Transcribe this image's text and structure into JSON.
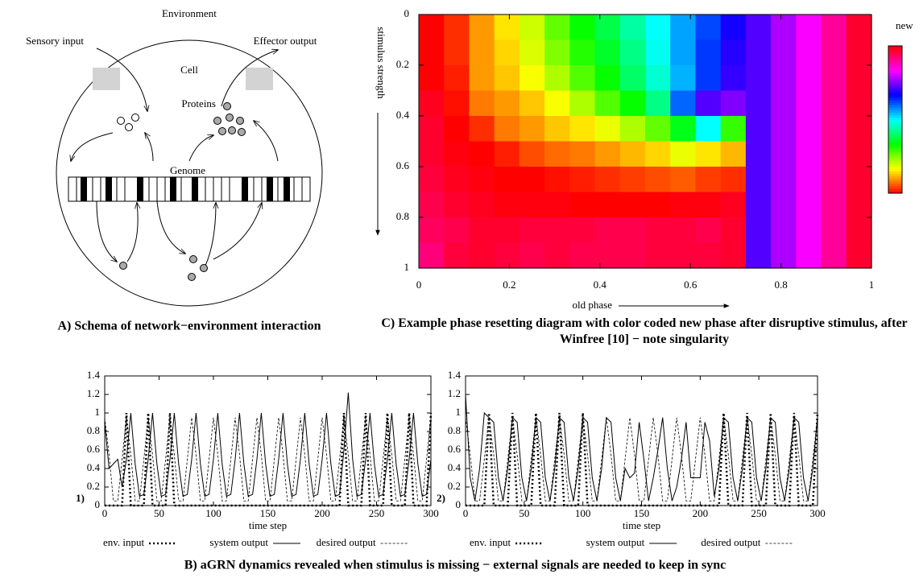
{
  "schema": {
    "environment": "Environment",
    "sensory_input": "Sensory input",
    "effector_output": "Effector output",
    "cell": "Cell",
    "proteins": "Proteins",
    "genome": "Genome"
  },
  "captions": {
    "a": "A) Schema of network−environment interaction",
    "c": "C) Example phase resetting diagram with color coded new phase after disruptive stimulus, after Winfree [10] − note singularity",
    "b": "B) aGRN dynamics revealed when stimulus is missing − external signals are needed to keep in sync"
  },
  "chart_data": [
    {
      "type": "heatmap",
      "xlabel": "old phase",
      "ylabel": "stimulus strength",
      "colorbar_label": "new",
      "xlim": [
        0,
        1
      ],
      "ylim": [
        1,
        0
      ],
      "clim": [
        0,
        1
      ],
      "xticks": [
        0,
        0.2,
        0.4,
        0.6,
        0.8,
        1
      ],
      "yticks": [
        0,
        0.2,
        0.4,
        0.6,
        0.8,
        1
      ],
      "values": [
        [
          0.0,
          0.03,
          0.1,
          0.15,
          0.2,
          0.27,
          0.33,
          0.38,
          0.44,
          0.5,
          0.56,
          0.62,
          0.68,
          0.72,
          0.78,
          0.83,
          0.9,
          0.97
        ],
        [
          0.0,
          0.03,
          0.1,
          0.14,
          0.19,
          0.25,
          0.31,
          0.36,
          0.42,
          0.49,
          0.56,
          0.63,
          0.69,
          0.72,
          0.78,
          0.83,
          0.9,
          0.97
        ],
        [
          0.0,
          0.02,
          0.1,
          0.13,
          0.17,
          0.22,
          0.28,
          0.33,
          0.4,
          0.47,
          0.55,
          0.63,
          0.7,
          0.72,
          0.78,
          0.83,
          0.9,
          0.97
        ],
        [
          0.98,
          0.01,
          0.08,
          0.1,
          0.13,
          0.17,
          0.22,
          0.28,
          0.33,
          0.42,
          0.6,
          0.72,
          0.75,
          0.72,
          0.78,
          0.83,
          0.9,
          0.97
        ],
        [
          0.97,
          0.0,
          0.03,
          0.08,
          0.1,
          0.13,
          0.15,
          0.18,
          0.22,
          0.27,
          0.35,
          0.5,
          0.3,
          0.72,
          0.78,
          0.83,
          0.9,
          0.97
        ],
        [
          0.97,
          0.99,
          0.0,
          0.02,
          0.05,
          0.07,
          0.08,
          0.1,
          0.12,
          0.14,
          0.18,
          0.15,
          0.12,
          0.72,
          0.78,
          0.83,
          0.9,
          0.97
        ],
        [
          0.96,
          0.98,
          0.99,
          0.0,
          0.0,
          0.01,
          0.02,
          0.03,
          0.04,
          0.05,
          0.06,
          0.04,
          0.03,
          0.72,
          0.78,
          0.83,
          0.9,
          0.97
        ],
        [
          0.95,
          0.97,
          0.98,
          0.99,
          0.99,
          0.99,
          0.0,
          0.0,
          0.0,
          0.0,
          0.99,
          0.99,
          0.98,
          0.72,
          0.78,
          0.83,
          0.9,
          0.97
        ],
        [
          0.94,
          0.95,
          0.97,
          0.97,
          0.96,
          0.96,
          0.96,
          0.95,
          0.95,
          0.96,
          0.96,
          0.95,
          0.97,
          0.72,
          0.78,
          0.83,
          0.9,
          0.97
        ],
        [
          0.92,
          0.96,
          0.97,
          0.96,
          0.95,
          0.96,
          0.95,
          0.95,
          0.95,
          0.96,
          0.96,
          0.96,
          0.97,
          0.72,
          0.78,
          0.83,
          0.9,
          0.97
        ]
      ]
    },
    {
      "type": "line",
      "panel_label": "1)",
      "xlabel": "time step",
      "xlim": [
        0,
        300
      ],
      "ylim": [
        0,
        1.4
      ],
      "xticks": [
        0,
        50,
        100,
        150,
        200,
        250,
        300
      ],
      "yticks": [
        0,
        0.2,
        0.4,
        0.6,
        0.8,
        1,
        1.2,
        1.4
      ],
      "x": [
        0,
        4,
        8,
        12,
        16,
        20,
        24,
        28,
        32,
        36,
        40,
        44,
        48,
        52,
        56,
        60,
        64,
        68,
        72,
        76,
        80,
        84,
        88,
        92,
        96,
        100,
        104,
        108,
        112,
        116,
        120,
        124,
        128,
        132,
        136,
        140,
        144,
        148,
        152,
        156,
        160,
        164,
        168,
        172,
        176,
        180,
        184,
        188,
        192,
        196,
        200,
        204,
        208,
        212,
        216,
        220,
        224,
        228,
        232,
        236,
        240,
        244,
        248,
        252,
        256,
        260,
        264,
        268,
        272,
        276,
        280,
        284,
        288,
        292,
        296,
        300
      ],
      "series": [
        {
          "name": "env. input",
          "color": "#000000",
          "style": "dotted",
          "values": [
            0,
            0,
            0,
            0,
            0,
            1,
            0,
            0,
            0,
            0,
            1,
            0,
            0,
            0,
            0,
            1,
            0,
            0,
            0,
            0,
            0,
            0,
            0,
            0,
            0,
            0,
            0,
            0,
            0,
            0,
            0,
            0,
            0,
            0,
            0,
            0,
            0,
            0,
            0,
            0,
            0,
            0,
            0,
            0,
            0,
            0,
            0,
            0,
            0,
            0,
            0,
            0,
            0,
            0,
            0,
            1,
            0,
            0,
            0,
            0,
            1,
            0,
            0,
            0,
            0,
            1,
            0,
            0,
            0,
            0,
            1,
            0,
            0,
            0,
            0,
            1
          ]
        },
        {
          "name": "system output",
          "color": "#000000",
          "style": "solid",
          "values": [
            0.9,
            0.4,
            0.45,
            0.5,
            0.2,
            0.5,
            1.0,
            0.45,
            0.1,
            0.12,
            0.5,
            1.0,
            0.45,
            0.1,
            0.12,
            0.5,
            1.0,
            0.45,
            0.1,
            0.12,
            0.5,
            1.0,
            0.45,
            0.1,
            0.12,
            0.5,
            1.0,
            0.45,
            0.1,
            0.12,
            0.5,
            1.0,
            0.45,
            0.1,
            0.12,
            0.5,
            1.0,
            0.45,
            0.1,
            0.12,
            0.5,
            1.0,
            0.45,
            0.1,
            0.12,
            0.5,
            1.0,
            0.45,
            0.1,
            0.12,
            0.5,
            1.0,
            0.45,
            0.1,
            0.12,
            0.6,
            1.22,
            0.5,
            0.1,
            0.12,
            0.5,
            1.0,
            0.45,
            0.1,
            0.12,
            0.5,
            1.0,
            0.45,
            0.1,
            0.12,
            0.5,
            1.0,
            0.45,
            0.1,
            0.12,
            0.5
          ]
        },
        {
          "name": "desired output",
          "color": "#000000",
          "style": "dashed",
          "values": [
            0.95,
            0.55,
            0.05,
            0.05,
            0.5,
            0.95,
            0.55,
            0.05,
            0.05,
            0.5,
            0.95,
            0.55,
            0.05,
            0.05,
            0.5,
            0.95,
            0.55,
            0.05,
            0.05,
            0.5,
            0.95,
            0.55,
            0.05,
            0.05,
            0.5,
            0.95,
            0.55,
            0.05,
            0.05,
            0.5,
            0.95,
            0.55,
            0.05,
            0.05,
            0.5,
            0.95,
            0.55,
            0.05,
            0.05,
            0.5,
            0.95,
            0.55,
            0.05,
            0.05,
            0.5,
            0.95,
            0.55,
            0.05,
            0.05,
            0.5,
            0.95,
            0.55,
            0.05,
            0.05,
            0.5,
            0.95,
            0.55,
            0.05,
            0.05,
            0.5,
            0.95,
            0.55,
            0.05,
            0.05,
            0.5,
            0.95,
            0.55,
            0.05,
            0.05,
            0.5,
            0.95,
            0.55,
            0.05,
            0.05,
            0.5,
            0.95
          ]
        }
      ]
    },
    {
      "type": "line",
      "panel_label": "2)",
      "xlabel": "time step",
      "xlim": [
        0,
        300
      ],
      "ylim": [
        0,
        1.4
      ],
      "xticks": [
        0,
        50,
        100,
        150,
        200,
        250,
        300
      ],
      "yticks": [
        0,
        0.2,
        0.4,
        0.6,
        0.8,
        1,
        1.2,
        1.4
      ],
      "x": [
        0,
        4,
        8,
        12,
        16,
        20,
        24,
        28,
        32,
        36,
        40,
        44,
        48,
        52,
        56,
        60,
        64,
        68,
        72,
        76,
        80,
        84,
        88,
        92,
        96,
        100,
        104,
        108,
        112,
        116,
        120,
        124,
        128,
        132,
        136,
        140,
        144,
        148,
        152,
        156,
        160,
        164,
        168,
        172,
        176,
        180,
        184,
        188,
        192,
        196,
        200,
        204,
        208,
        212,
        216,
        220,
        224,
        228,
        232,
        236,
        240,
        244,
        248,
        252,
        256,
        260,
        264,
        268,
        272,
        276,
        280,
        284,
        288,
        292,
        296,
        300
      ],
      "series": [
        {
          "name": "env. input",
          "color": "#000000",
          "style": "dotted",
          "values": [
            0,
            0,
            0,
            0,
            0,
            1,
            0,
            0,
            0,
            0,
            1,
            0,
            0,
            0,
            0,
            1,
            0,
            0,
            0,
            0,
            1,
            0,
            0,
            0,
            0,
            1,
            0,
            0,
            0,
            0,
            0,
            0,
            0,
            0,
            0,
            0,
            0,
            0,
            0,
            0,
            0,
            0,
            0,
            0,
            0,
            0,
            0,
            0,
            0,
            0,
            0,
            0,
            0,
            0,
            0,
            1,
            0,
            0,
            0,
            0,
            1,
            0,
            0,
            0,
            0,
            1,
            0,
            0,
            0,
            0,
            1,
            0,
            0,
            0,
            0,
            1
          ]
        },
        {
          "name": "system output",
          "color": "#000000",
          "style": "solid",
          "values": [
            1.2,
            0.3,
            0.05,
            0.4,
            1.0,
            0.95,
            0.9,
            0.3,
            0.05,
            0.4,
            0.95,
            0.9,
            0.3,
            0.05,
            0.4,
            0.95,
            0.9,
            0.3,
            0.05,
            0.4,
            0.95,
            0.9,
            0.3,
            0.05,
            0.4,
            0.95,
            0.9,
            0.3,
            0.05,
            0.4,
            0.95,
            0.9,
            0.3,
            0.05,
            0.4,
            0.3,
            0.35,
            0.9,
            0.5,
            0.05,
            0.3,
            0.6,
            0.95,
            0.4,
            0.05,
            0.2,
            0.5,
            0.9,
            0.3,
            0.3,
            0.3,
            0.9,
            0.7,
            0.1,
            0.4,
            0.95,
            0.9,
            0.3,
            0.05,
            0.4,
            0.95,
            0.9,
            0.3,
            0.05,
            0.4,
            0.95,
            0.9,
            0.3,
            0.05,
            0.4,
            0.95,
            0.9,
            0.3,
            0.05,
            0.4,
            0.95
          ]
        },
        {
          "name": "desired output",
          "color": "#000000",
          "style": "dashed",
          "values": [
            0.95,
            0.55,
            0.05,
            0.05,
            0.5,
            0.95,
            0.55,
            0.05,
            0.05,
            0.5,
            0.95,
            0.55,
            0.05,
            0.05,
            0.5,
            0.95,
            0.55,
            0.05,
            0.05,
            0.5,
            0.95,
            0.55,
            0.05,
            0.05,
            0.5,
            0.95,
            0.55,
            0.05,
            0.05,
            0.5,
            0.95,
            0.55,
            0.05,
            0.05,
            0.5,
            0.95,
            0.55,
            0.05,
            0.05,
            0.5,
            0.95,
            0.55,
            0.05,
            0.05,
            0.5,
            0.95,
            0.55,
            0.05,
            0.05,
            0.5,
            0.95,
            0.55,
            0.05,
            0.05,
            0.5,
            0.95,
            0.55,
            0.05,
            0.05,
            0.5,
            0.95,
            0.55,
            0.05,
            0.05,
            0.5,
            0.95,
            0.55,
            0.05,
            0.05,
            0.5,
            0.95,
            0.55,
            0.05,
            0.05,
            0.5,
            0.95
          ]
        }
      ]
    }
  ]
}
